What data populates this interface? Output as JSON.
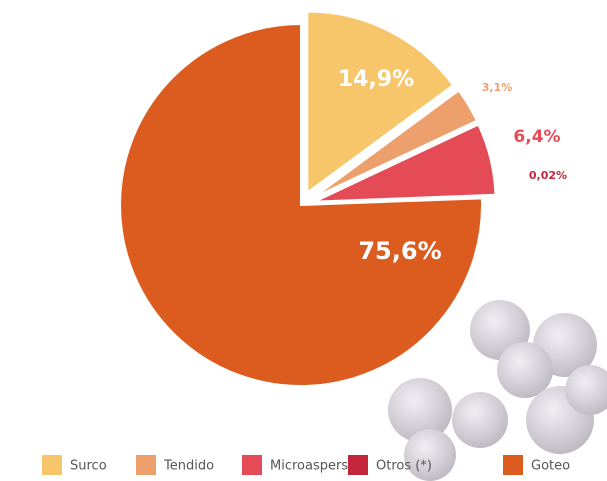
{
  "chart_data": {
    "type": "pie",
    "categories": [
      "Surco",
      "Tendido",
      "Microaspersión",
      "Otros (*)",
      "Goteo"
    ],
    "values": [
      14.9,
      3.1,
      6.4,
      0.02,
      75.6
    ],
    "value_labels": [
      "14,9%",
      "3,1%",
      "6,4%",
      "0,02%",
      "75,6%"
    ],
    "colors": [
      "#f7c66b",
      "#eea06c",
      "#e54b57",
      "#c3263c",
      "#dc5b1f"
    ],
    "legend": "bottom"
  }
}
